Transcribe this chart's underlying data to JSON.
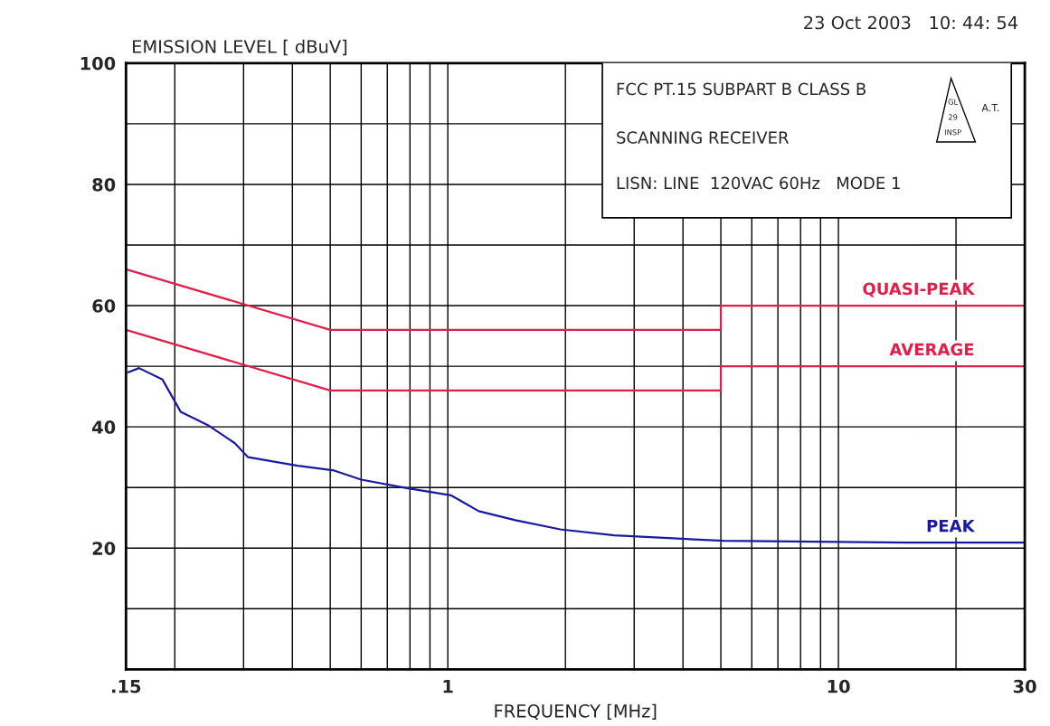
{
  "chart_data": {
    "type": "line",
    "ylabel": "EMISSION LEVEL [ dBuV]",
    "xlabel": "FREQUENCY [MHz]",
    "annotations": [
      "23 Oct 2003   10: 44: 54",
      "FCC PT.15 SUBPART B CLASS B",
      "SCANNING RECEIVER",
      "LISN: LINE  120VAC 60Hz   MODE 1",
      "GL",
      "29",
      "INSP",
      "A.T."
    ],
    "log": "x",
    "grid": true,
    "legend": false,
    "line_style": "solid",
    "marker": "none",
    "xlim": [
      0.15,
      30
    ],
    "xticks": [
      {
        "value": 0.15,
        "label": ".15"
      },
      {
        "value": 0.2,
        "label": null
      },
      {
        "value": 0.3,
        "label": null
      },
      {
        "value": 0.4,
        "label": null
      },
      {
        "value": 0.5,
        "label": null
      },
      {
        "value": 0.6,
        "label": null
      },
      {
        "value": 0.7,
        "label": null
      },
      {
        "value": 0.8,
        "label": null
      },
      {
        "value": 0.9,
        "label": null
      },
      1,
      {
        "value": 2,
        "label": null
      },
      {
        "value": 3,
        "label": null
      },
      {
        "value": 4,
        "label": null
      },
      {
        "value": 5,
        "label": null
      },
      {
        "value": 6,
        "label": null
      },
      {
        "value": 7,
        "label": null
      },
      {
        "value": 8,
        "label": null
      },
      {
        "value": 9,
        "label": null
      },
      10,
      {
        "value": 20,
        "label": null
      },
      30
    ],
    "ylim": [
      0,
      100
    ],
    "yticks": [
      {
        "value": 10,
        "label": null
      },
      20,
      {
        "value": 30,
        "label": null
      },
      40,
      {
        "value": 50,
        "label": null
      },
      60,
      {
        "value": 70,
        "label": null
      },
      80,
      {
        "value": 90,
        "label": null
      },
      100
    ],
    "series": [
      {
        "name": "PEAK",
        "color": "#1a1aa0",
        "x": [
          0.152,
          0.162,
          0.186,
          0.207,
          0.243,
          0.285,
          0.308,
          0.413,
          0.512,
          0.6,
          0.785,
          1.02,
          1.2,
          1.49,
          1.94,
          2.67,
          5.08,
          14.8,
          30
        ],
        "values": [
          49,
          49.7,
          47.8,
          42.5,
          40.3,
          37.3,
          35,
          33.6,
          32.8,
          31.3,
          29.9,
          28.7,
          26.1,
          24.6,
          23.1,
          22.1,
          21.2,
          20.9,
          20.9
        ]
      },
      {
        "name": "QUASI-PEAK",
        "color": "#e0204a",
        "x": [
          0.15,
          0.5,
          5,
          5,
          30
        ],
        "values": [
          66,
          56,
          56,
          60,
          60
        ]
      },
      {
        "name": "AVERAGE",
        "color": "#e0204a",
        "x": [
          0.15,
          0.5,
          5,
          5,
          30
        ],
        "values": [
          56,
          46,
          46,
          50,
          50
        ]
      }
    ]
  }
}
